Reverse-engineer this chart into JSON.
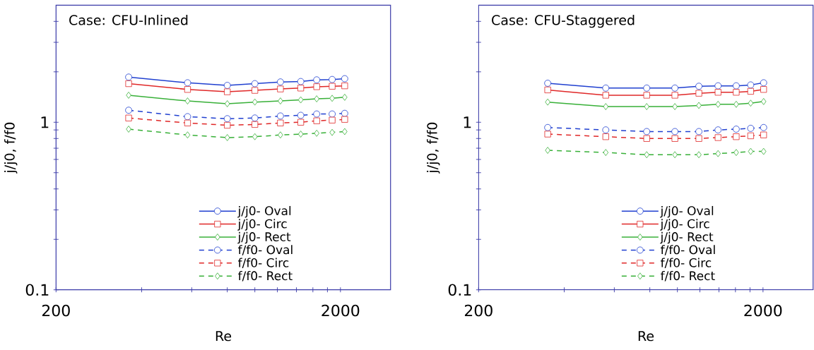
{
  "chart_data": [
    {
      "type": "line",
      "title": "Case: CFU-Inlined",
      "xlabel": "Re",
      "ylabel": "j/j0, f/f0",
      "log": "xy",
      "xlim": [
        200,
        3000
      ],
      "ylim": [
        0.1,
        5
      ],
      "xticks": [
        200,
        {
          "value": 400,
          "label": null
        },
        {
          "value": 600,
          "label": null
        },
        {
          "value": 800,
          "label": null
        },
        {
          "value": 1000,
          "label": null
        },
        {
          "value": 1200,
          "label": null
        },
        {
          "value": 1400,
          "label": null
        },
        {
          "value": 1600,
          "label": null
        },
        {
          "value": 1800,
          "label": null
        },
        2000
      ],
      "yticks": [
        0.1,
        {
          "value": 0.2,
          "label": null
        },
        {
          "value": 0.3,
          "label": null
        },
        {
          "value": 0.4,
          "label": null
        },
        {
          "value": 0.5,
          "label": null
        },
        {
          "value": 0.6,
          "label": null
        },
        {
          "value": 0.7,
          "label": null
        },
        {
          "value": 0.8,
          "label": null
        },
        {
          "value": 0.9,
          "label": null
        },
        1,
        {
          "value": 2,
          "label": null
        },
        {
          "value": 3,
          "label": null
        },
        {
          "value": 4,
          "label": null
        }
      ],
      "x": [
        360,
        580,
        800,
        1000,
        1230,
        1450,
        1650,
        1870,
        2070
      ],
      "legend": "bottom",
      "grid": false,
      "series": [
        {
          "name": "j/j0- Oval",
          "color": "#2040d0",
          "marker": "circle",
          "line_style": "solid",
          "values": [
            1.86,
            1.72,
            1.66,
            1.7,
            1.74,
            1.75,
            1.79,
            1.8,
            1.82
          ]
        },
        {
          "name": "j/j0- Circ",
          "color": "#e02828",
          "marker": "square",
          "line_style": "solid",
          "values": [
            1.7,
            1.57,
            1.52,
            1.55,
            1.58,
            1.6,
            1.63,
            1.64,
            1.65
          ]
        },
        {
          "name": "j/j0- Rect",
          "color": "#38b038",
          "marker": "diamond",
          "line_style": "solid",
          "values": [
            1.45,
            1.34,
            1.29,
            1.32,
            1.34,
            1.36,
            1.38,
            1.39,
            1.41
          ]
        },
        {
          "name": "f/f0- Oval",
          "color": "#2040d0",
          "marker": "circle",
          "line_style": "dashed",
          "values": [
            1.18,
            1.08,
            1.05,
            1.06,
            1.09,
            1.1,
            1.12,
            1.12,
            1.13
          ]
        },
        {
          "name": "f/f0- Circ",
          "color": "#e02828",
          "marker": "square",
          "line_style": "dashed",
          "values": [
            1.06,
            0.99,
            0.96,
            0.97,
            0.99,
            1.0,
            1.02,
            1.03,
            1.04
          ]
        },
        {
          "name": "f/f0- Rect",
          "color": "#38b038",
          "marker": "diamond",
          "line_style": "dashed",
          "values": [
            0.91,
            0.84,
            0.81,
            0.82,
            0.84,
            0.85,
            0.86,
            0.87,
            0.88
          ]
        }
      ]
    },
    {
      "type": "line",
      "title": "Case: CFU-Staggered",
      "xlabel": "Re",
      "ylabel": "j/j0, f/f0",
      "log": "xy",
      "xlim": [
        200,
        3000
      ],
      "ylim": [
        0.1,
        5
      ],
      "xticks": [
        200,
        {
          "value": 400,
          "label": null
        },
        {
          "value": 600,
          "label": null
        },
        {
          "value": 800,
          "label": null
        },
        {
          "value": 1000,
          "label": null
        },
        {
          "value": 1200,
          "label": null
        },
        {
          "value": 1400,
          "label": null
        },
        {
          "value": 1600,
          "label": null
        },
        {
          "value": 1800,
          "label": null
        },
        2000
      ],
      "yticks": [
        0.1,
        {
          "value": 0.2,
          "label": null
        },
        {
          "value": 0.3,
          "label": null
        },
        {
          "value": 0.4,
          "label": null
        },
        {
          "value": 0.5,
          "label": null
        },
        {
          "value": 0.6,
          "label": null
        },
        {
          "value": 0.7,
          "label": null
        },
        {
          "value": 0.8,
          "label": null
        },
        {
          "value": 0.9,
          "label": null
        },
        1,
        {
          "value": 2,
          "label": null
        },
        {
          "value": 3,
          "label": null
        },
        {
          "value": 4,
          "label": null
        }
      ],
      "x": [
        350,
        560,
        780,
        980,
        1190,
        1390,
        1610,
        1810,
        2010
      ],
      "legend": "bottom",
      "grid": false,
      "series": [
        {
          "name": "j/j0- Oval",
          "color": "#2040d0",
          "marker": "circle",
          "line_style": "solid",
          "values": [
            1.71,
            1.6,
            1.6,
            1.6,
            1.64,
            1.65,
            1.65,
            1.67,
            1.72
          ]
        },
        {
          "name": "j/j0- Circ",
          "color": "#e02828",
          "marker": "square",
          "line_style": "solid",
          "values": [
            1.56,
            1.45,
            1.45,
            1.45,
            1.49,
            1.51,
            1.51,
            1.53,
            1.57
          ]
        },
        {
          "name": "j/j0- Rect",
          "color": "#38b038",
          "marker": "diamond",
          "line_style": "solid",
          "values": [
            1.32,
            1.24,
            1.24,
            1.24,
            1.26,
            1.28,
            1.28,
            1.3,
            1.33
          ]
        },
        {
          "name": "f/f0- Oval",
          "color": "#2040d0",
          "marker": "circle",
          "line_style": "dashed",
          "values": [
            0.93,
            0.9,
            0.88,
            0.88,
            0.88,
            0.9,
            0.91,
            0.92,
            0.93
          ]
        },
        {
          "name": "f/f0- Circ",
          "color": "#e02828",
          "marker": "square",
          "line_style": "dashed",
          "values": [
            0.85,
            0.82,
            0.8,
            0.8,
            0.8,
            0.81,
            0.82,
            0.83,
            0.84
          ]
        },
        {
          "name": "f/f0- Rect",
          "color": "#38b038",
          "marker": "diamond",
          "line_style": "dashed",
          "values": [
            0.68,
            0.66,
            0.64,
            0.64,
            0.64,
            0.65,
            0.66,
            0.67,
            0.67
          ]
        }
      ]
    }
  ]
}
